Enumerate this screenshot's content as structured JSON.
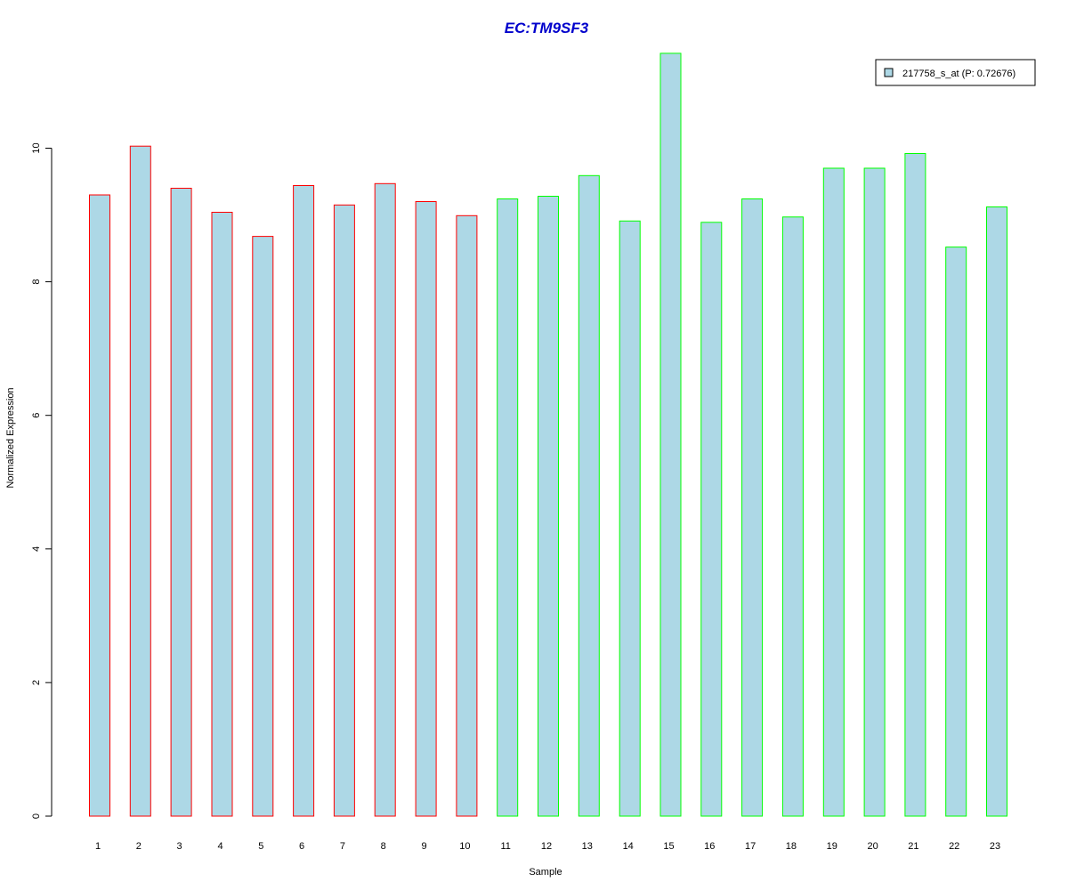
{
  "chart_data": {
    "type": "bar",
    "title": "EC:TM9SF3",
    "xlabel": "Sample",
    "ylabel": "Normalized Expression",
    "categories": [
      "1",
      "2",
      "3",
      "4",
      "5",
      "6",
      "7",
      "8",
      "9",
      "10",
      "11",
      "12",
      "13",
      "14",
      "15",
      "16",
      "17",
      "18",
      "19",
      "20",
      "21",
      "22",
      "23"
    ],
    "series": [
      {
        "name": "217758_s_at (P: 0.72676)",
        "values": [
          9.3,
          10.03,
          9.4,
          9.04,
          8.68,
          9.44,
          9.15,
          9.47,
          9.2,
          8.99,
          9.24,
          9.28,
          9.59,
          8.91,
          11.42,
          8.89,
          9.24,
          8.97,
          9.7,
          9.7,
          9.92,
          8.52,
          9.12
        ]
      }
    ],
    "groups": [
      1,
      1,
      1,
      1,
      1,
      1,
      1,
      1,
      1,
      1,
      2,
      2,
      2,
      2,
      2,
      2,
      2,
      2,
      2,
      2,
      2,
      2,
      2
    ],
    "group_colors": [
      "#ff0000",
      "#00ff00"
    ],
    "fill_color": "#add8e6",
    "title_color": "#0000cc",
    "yticks": [
      0,
      2,
      4,
      6,
      8,
      10
    ],
    "ylim": [
      0,
      11.42
    ],
    "legend_position": "top-right",
    "grid": false
  }
}
